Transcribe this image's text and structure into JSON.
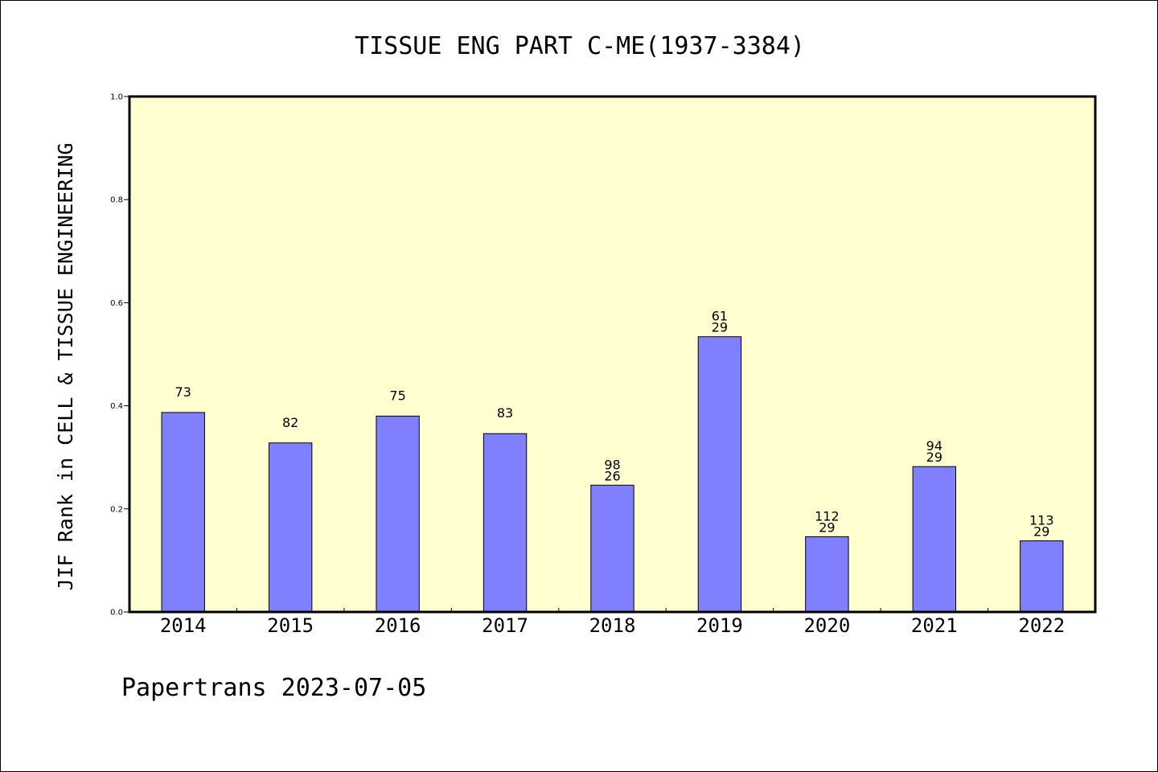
{
  "footer_text": "Papertrans 2023-07-05",
  "colors": {
    "plot_background": "#ffffd0",
    "bar_fill": "#8080ff",
    "bar_stroke": "#000000",
    "axis": "#000000"
  },
  "chart_data": {
    "type": "bar",
    "title": "TISSUE ENG PART C-ME(1937-3384)",
    "xlabel": "",
    "ylabel": "JIF Rank in CELL & TISSUE ENGINEERING",
    "ylim": [
      0,
      1.0
    ],
    "yticks": [
      "0.0",
      "0.2",
      "0.4",
      "0.6",
      "0.8",
      "1.0"
    ],
    "grid": false,
    "categories": [
      "2014",
      "2015",
      "2016",
      "2017",
      "2018",
      "2019",
      "2020",
      "2021",
      "2022"
    ],
    "values": [
      0.387,
      0.328,
      0.38,
      0.346,
      0.246,
      0.534,
      0.146,
      0.282,
      0.138
    ],
    "labels": [
      [
        "73"
      ],
      [
        "82"
      ],
      [
        "75"
      ],
      [
        "83"
      ],
      [
        "98",
        "26"
      ],
      [
        "61",
        "29"
      ],
      [
        "112",
        "29"
      ],
      [
        "94",
        "29"
      ],
      [
        "113",
        "29"
      ]
    ]
  }
}
